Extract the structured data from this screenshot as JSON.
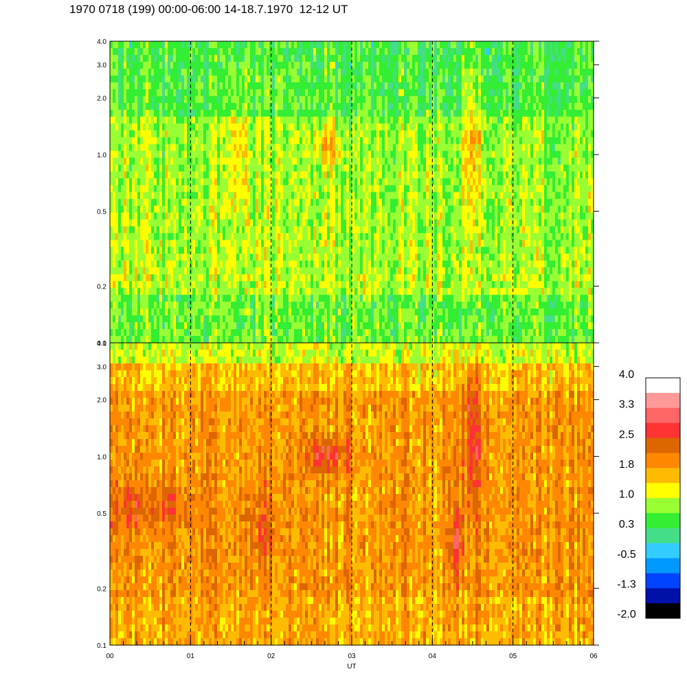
{
  "title": "1970 0718 (199) 00:00-06:00 14-18.7.1970  12-12 UT",
  "colors": {
    "palette": [
      "#000000",
      "#0011aa",
      "#0044ff",
      "#0099ff",
      "#33ccff",
      "#44dd88",
      "#33ee33",
      "#99ff33",
      "#ffff00",
      "#ffbb00",
      "#ff8800",
      "#dd6600",
      "#ff3333",
      "#ff6666",
      "#ff9999",
      "#ffffff"
    ]
  },
  "chart_data": {
    "type": "heatmap",
    "xlabel": "UT",
    "x_ticks": [
      "00",
      "01",
      "02",
      "03",
      "04",
      "05",
      "06"
    ],
    "x_range": [
      0,
      6
    ],
    "y_scale": "log",
    "y_range": [
      0.1,
      4.0
    ],
    "panels": [
      {
        "y_ticks": [
          "0.1",
          "0.2",
          "0.5",
          "1.0",
          "2.0",
          "3.0",
          "4.0"
        ],
        "dominant": "green to yellow (low values), occasional orange/red vertical streaks",
        "features": [
          {
            "x": 2.7,
            "y": 1.1,
            "value": 1.8
          },
          {
            "x": 4.5,
            "y": 1.5,
            "value": 1.8
          },
          {
            "x": 1.6,
            "y": 1.5,
            "value": 1.8
          }
        ]
      },
      {
        "y_ticks": [
          "0.1",
          "0.2",
          "0.5",
          "1.0",
          "2.0",
          "3.0",
          "4.0"
        ],
        "dominant": "orange to dark orange (high values), green/yellow at top",
        "features": [
          {
            "x": 2.7,
            "y": 1.0,
            "value": 2.5
          },
          {
            "x": 4.5,
            "y": 1.5,
            "value": 2.5
          },
          {
            "x": 4.3,
            "y": 0.4,
            "value": 2.5
          },
          {
            "x": 0.4,
            "y": 0.5,
            "value": 2.2
          }
        ]
      }
    ],
    "dashed_lines_x": [
      1,
      2,
      3,
      4,
      5
    ],
    "colorbar": {
      "labels": [
        "4.0",
        "3.3",
        "2.5",
        "1.8",
        "1.0",
        "0.3",
        "-0.5",
        "-1.3",
        "-2.0"
      ]
    }
  }
}
